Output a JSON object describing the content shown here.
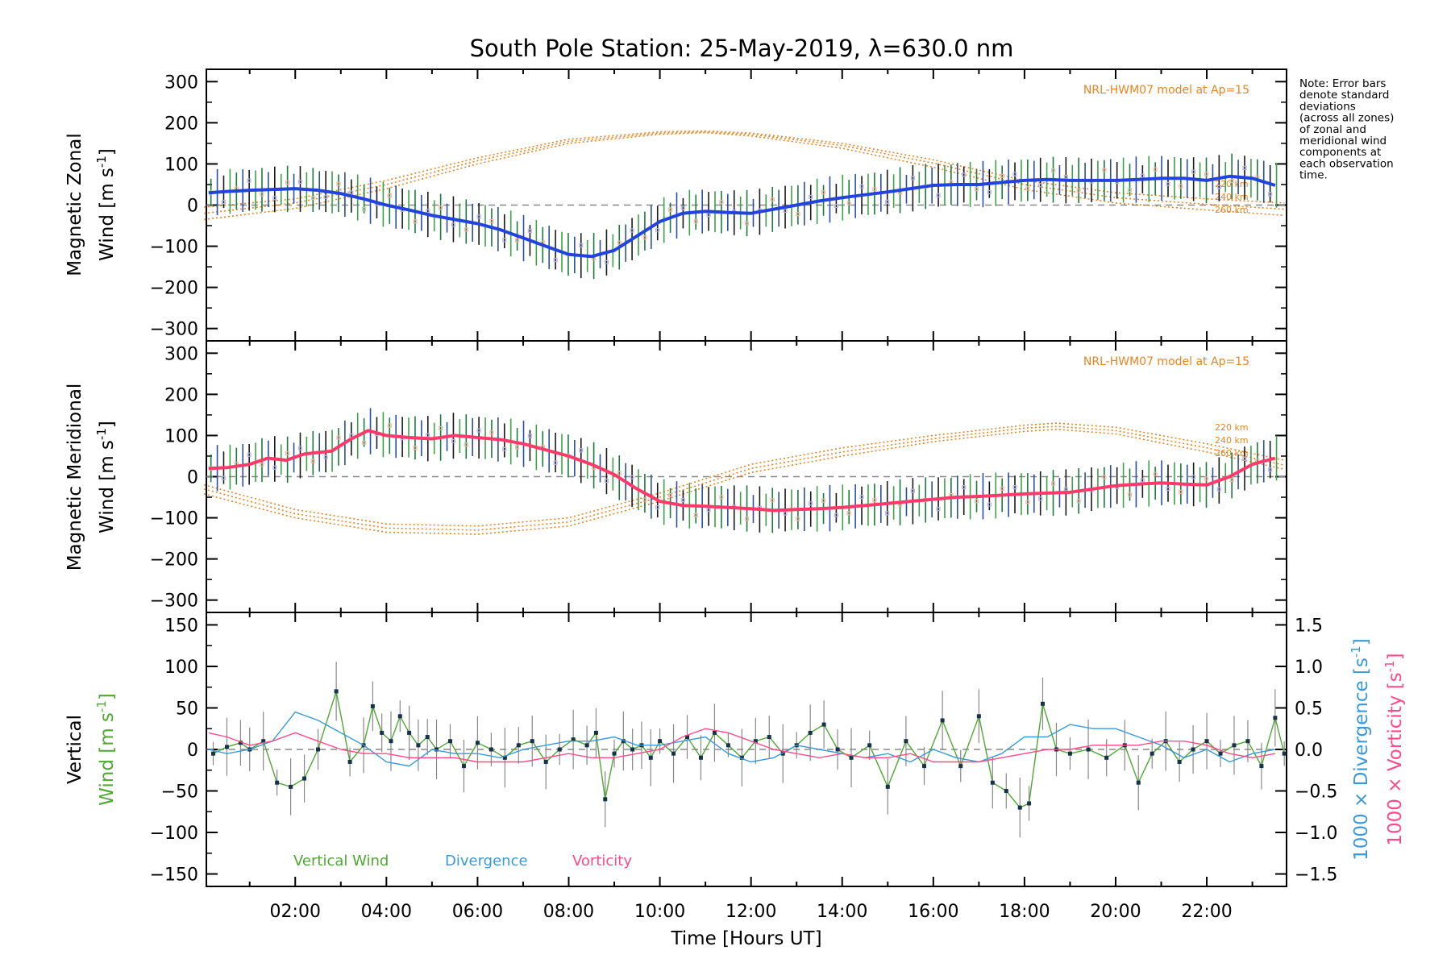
{
  "chart_data": [
    {
      "type": "line",
      "panel": "zonal",
      "title": "South Pole Station: 25-May-2019, λ=630.0 nm",
      "ylabel_line1": "Magnetic Zonal",
      "ylabel_line2": "Wind [m s",
      "ylabel_sup": "-1",
      "ylabel_close": "]",
      "ylim": [
        -330,
        330
      ],
      "yticks": [
        300,
        200,
        100,
        0,
        -100,
        -200,
        -300
      ],
      "xlim": [
        0.05,
        23.75
      ],
      "model_label": "NRL-HWM07 model at Ap=15",
      "altitudes": [
        "220 km",
        "240 km",
        "260 km"
      ],
      "note_lines": [
        "Note: Error bars",
        "denote standard",
        "deviations",
        "(across all zones)",
        "of zonal and",
        "meridional wind",
        "components at",
        "each observation",
        "time."
      ],
      "series": [
        {
          "name": "Zonal wind",
          "color": "#2244dd",
          "x": [
            0.1,
            0.5,
            1.0,
            1.5,
            2.0,
            2.5,
            3.0,
            3.5,
            4.0,
            4.5,
            5.0,
            5.5,
            6.0,
            6.5,
            7.0,
            7.5,
            8.0,
            8.5,
            9.0,
            9.5,
            10.0,
            10.5,
            11.0,
            11.5,
            12.0,
            12.5,
            13.0,
            13.5,
            14.0,
            14.5,
            15.0,
            15.5,
            16.0,
            16.5,
            17.0,
            17.5,
            18.0,
            18.5,
            19.0,
            19.5,
            20.0,
            20.5,
            21.0,
            21.5,
            22.0,
            22.5,
            23.0,
            23.5
          ],
          "values": [
            30,
            33,
            36,
            38,
            40,
            36,
            28,
            15,
            0,
            -12,
            -25,
            -35,
            -45,
            -60,
            -80,
            -100,
            -120,
            -125,
            -110,
            -75,
            -40,
            -20,
            -15,
            -18,
            -20,
            -10,
            0,
            10,
            18,
            25,
            32,
            40,
            48,
            50,
            50,
            55,
            60,
            62,
            60,
            60,
            60,
            62,
            65,
            65,
            60,
            70,
            65,
            48
          ],
          "spread": 45
        },
        {
          "name": "HWM07 220 km",
          "color": "#e8841f",
          "x": [
            0,
            2,
            4,
            6,
            8,
            10,
            11,
            12,
            14,
            16,
            18,
            20,
            22,
            23.7
          ],
          "values": [
            -5,
            15,
            60,
            115,
            160,
            178,
            180,
            175,
            150,
            110,
            60,
            30,
            15,
            5
          ]
        },
        {
          "name": "HWM07 240 km",
          "color": "#e8841f",
          "x": [
            0,
            2,
            4,
            6,
            8,
            10,
            11,
            12,
            14,
            16,
            18,
            20,
            22,
            23.7
          ],
          "values": [
            -20,
            5,
            50,
            108,
            155,
            175,
            178,
            172,
            145,
            102,
            50,
            18,
            2,
            -10
          ]
        },
        {
          "name": "HWM07 260 km",
          "color": "#e8841f",
          "x": [
            0,
            2,
            4,
            6,
            8,
            10,
            11,
            12,
            14,
            16,
            18,
            20,
            22,
            23.7
          ],
          "values": [
            -35,
            -8,
            40,
            100,
            150,
            172,
            176,
            168,
            138,
            92,
            38,
            5,
            -12,
            -25
          ]
        }
      ]
    },
    {
      "type": "line",
      "panel": "meridional",
      "ylabel_line1": "Magnetic Meridional",
      "ylabel_line2": "Wind [m s",
      "ylabel_sup": "-1",
      "ylabel_close": "]",
      "ylim": [
        -330,
        330
      ],
      "yticks": [
        300,
        200,
        100,
        0,
        -100,
        -200,
        -300
      ],
      "xlim": [
        0.05,
        23.75
      ],
      "model_label": "NRL-HWM07 model at Ap=15",
      "altitudes": [
        "220 km",
        "240 km",
        "260 km"
      ],
      "series": [
        {
          "name": "Meridional wind",
          "color": "#ff3a6a",
          "x": [
            0.1,
            0.5,
            1.0,
            1.4,
            1.8,
            2.2,
            2.8,
            3.2,
            3.6,
            4.0,
            4.5,
            5.0,
            5.5,
            6.0,
            6.5,
            7.0,
            7.5,
            8.0,
            8.5,
            9.0,
            9.5,
            10.0,
            10.5,
            11.0,
            11.5,
            12.0,
            12.5,
            13.0,
            13.5,
            14.0,
            14.5,
            15.0,
            15.5,
            16.0,
            16.5,
            17.0,
            17.5,
            18.0,
            18.5,
            19.0,
            19.5,
            20.0,
            20.5,
            21.0,
            21.5,
            22.0,
            22.5,
            23.0,
            23.5
          ],
          "values": [
            20,
            22,
            30,
            45,
            40,
            55,
            62,
            90,
            112,
            100,
            95,
            92,
            100,
            95,
            90,
            80,
            65,
            50,
            30,
            5,
            -30,
            -60,
            -70,
            -72,
            -75,
            -78,
            -82,
            -80,
            -78,
            -75,
            -70,
            -65,
            -60,
            -55,
            -50,
            -48,
            -45,
            -42,
            -40,
            -38,
            -30,
            -22,
            -18,
            -15,
            -18,
            -20,
            0,
            30,
            45
          ],
          "spread": 45
        },
        {
          "name": "HWM07 220 km",
          "color": "#e8841f",
          "x": [
            0,
            2,
            4,
            6,
            8,
            10,
            12,
            14,
            16,
            18,
            18.7,
            20,
            22,
            23.7
          ],
          "values": [
            -20,
            -80,
            -115,
            -120,
            -100,
            -40,
            30,
            70,
            100,
            125,
            130,
            120,
            80,
            40
          ]
        },
        {
          "name": "HWM07 240 km",
          "color": "#e8841f",
          "x": [
            0,
            2,
            4,
            6,
            8,
            10,
            12,
            14,
            16,
            18,
            18.7,
            20,
            22,
            23.7
          ],
          "values": [
            -30,
            -90,
            -125,
            -130,
            -110,
            -50,
            20,
            60,
            92,
            118,
            122,
            112,
            70,
            28
          ]
        },
        {
          "name": "HWM07 260 km",
          "color": "#e8841f",
          "x": [
            0,
            2,
            4,
            6,
            8,
            10,
            12,
            14,
            16,
            18,
            18.7,
            20,
            22,
            23.7
          ],
          "values": [
            -42,
            -100,
            -135,
            -140,
            -120,
            -60,
            10,
            50,
            85,
            110,
            115,
            104,
            60,
            18
          ]
        }
      ]
    },
    {
      "type": "line",
      "panel": "vertical",
      "ylabel_line1": "Vertical",
      "ylabel_line2": "Wind [m s",
      "ylabel_sup": "-1",
      "ylabel_close": "]",
      "ylim": [
        -165,
        165
      ],
      "yticks": [
        150,
        100,
        50,
        0,
        -50,
        -100,
        -150
      ],
      "y2lim": [
        -1.65,
        1.65
      ],
      "y2ticks": [
        "1.5",
        "1.0",
        "0.5",
        "0.0",
        "−0.5",
        "−1.0",
        "−1.5"
      ],
      "y2tick_values": [
        1.5,
        1.0,
        0.5,
        0.0,
        -0.5,
        -1.0,
        -1.5
      ],
      "y2label_div": "1000 × Divergence [s",
      "y2label_vort": "1000 × Vorticity [s",
      "y2label_sup": "-1",
      "y2label_close": "]",
      "xlim": [
        0.05,
        23.75
      ],
      "xticks": [
        "02:00",
        "04:00",
        "06:00",
        "08:00",
        "10:00",
        "12:00",
        "14:00",
        "16:00",
        "18:00",
        "20:00",
        "22:00"
      ],
      "xtick_values": [
        2,
        4,
        6,
        8,
        10,
        12,
        14,
        16,
        18,
        20,
        22
      ],
      "xlabel": "Time [Hours UT]",
      "legend": [
        "Vertical Wind",
        "Divergence",
        "Vorticity"
      ],
      "series": [
        {
          "name": "Vertical Wind",
          "color": "#4ea832",
          "x": [
            0.2,
            0.5,
            0.8,
            1.0,
            1.3,
            1.6,
            1.9,
            2.2,
            2.5,
            2.9,
            3.2,
            3.5,
            3.7,
            3.9,
            4.1,
            4.3,
            4.5,
            4.7,
            4.9,
            5.1,
            5.4,
            5.7,
            6.0,
            6.3,
            6.6,
            6.9,
            7.2,
            7.5,
            7.8,
            8.1,
            8.4,
            8.6,
            8.8,
            9.0,
            9.2,
            9.4,
            9.6,
            9.8,
            10.0,
            10.3,
            10.6,
            10.9,
            11.2,
            11.5,
            11.8,
            12.1,
            12.4,
            12.7,
            13.0,
            13.3,
            13.6,
            13.9,
            14.2,
            14.6,
            15.0,
            15.4,
            15.8,
            16.2,
            16.6,
            17.0,
            17.3,
            17.6,
            17.9,
            18.1,
            18.4,
            18.7,
            19.0,
            19.4,
            19.8,
            20.2,
            20.5,
            20.8,
            21.1,
            21.4,
            21.7,
            22.0,
            22.3,
            22.6,
            22.9,
            23.2,
            23.5,
            23.7
          ],
          "values": [
            -5,
            3,
            8,
            0,
            10,
            -40,
            -45,
            -35,
            0,
            70,
            -15,
            5,
            52,
            20,
            10,
            40,
            20,
            5,
            15,
            0,
            10,
            -20,
            8,
            0,
            -10,
            5,
            10,
            -15,
            0,
            12,
            5,
            20,
            -60,
            -5,
            10,
            0,
            5,
            -10,
            10,
            -5,
            15,
            -10,
            20,
            5,
            -10,
            10,
            15,
            -5,
            5,
            20,
            30,
            0,
            -10,
            5,
            -45,
            10,
            -20,
            35,
            -20,
            40,
            -40,
            -50,
            -70,
            -65,
            55,
            0,
            -5,
            0,
            -10,
            5,
            -40,
            -5,
            10,
            -15,
            0,
            10,
            -5,
            5,
            10,
            -20,
            38,
            -5
          ]
        },
        {
          "name": "Divergence",
          "color": "#3a9ad9",
          "axis": "right",
          "x": [
            0.1,
            0.5,
            1.0,
            1.5,
            2.0,
            2.5,
            3.0,
            3.5,
            4.0,
            4.5,
            5.0,
            5.5,
            6.0,
            6.5,
            7.0,
            7.5,
            8.0,
            8.5,
            9.0,
            9.5,
            10.0,
            10.5,
            11.0,
            11.5,
            12.0,
            12.5,
            13.0,
            13.5,
            14.0,
            14.5,
            15.0,
            15.5,
            16.0,
            16.5,
            17.0,
            17.5,
            18.0,
            18.5,
            19.0,
            19.5,
            20.0,
            20.5,
            21.0,
            21.5,
            22.0,
            22.5,
            23.0,
            23.5
          ],
          "values": [
            0.0,
            -0.05,
            0.0,
            0.1,
            0.45,
            0.35,
            0.2,
            0.05,
            -0.15,
            -0.2,
            0.0,
            -0.05,
            -0.05,
            -0.1,
            0.0,
            0.05,
            0.1,
            0.1,
            0.15,
            0.05,
            0.05,
            0.1,
            0.15,
            -0.05,
            -0.15,
            -0.1,
            0.05,
            0.0,
            -0.05,
            -0.1,
            -0.05,
            -0.15,
            0.0,
            -0.1,
            -0.15,
            -0.05,
            0.15,
            0.15,
            0.3,
            0.25,
            0.25,
            0.15,
            0.05,
            -0.1,
            0.0,
            -0.15,
            -0.05,
            0.0
          ]
        },
        {
          "name": "Vorticity",
          "color": "#ff4a86",
          "axis": "right",
          "x": [
            0.1,
            0.5,
            1.0,
            1.5,
            2.0,
            2.5,
            3.0,
            3.5,
            4.0,
            4.5,
            5.0,
            5.5,
            6.0,
            6.5,
            7.0,
            7.5,
            8.0,
            8.5,
            9.0,
            9.5,
            10.0,
            10.5,
            11.0,
            11.5,
            12.0,
            12.5,
            13.0,
            13.5,
            14.0,
            14.5,
            15.0,
            15.5,
            16.0,
            16.5,
            17.0,
            17.5,
            18.0,
            18.5,
            19.0,
            19.5,
            20.0,
            20.5,
            21.0,
            21.5,
            22.0,
            22.5,
            23.0,
            23.5
          ],
          "values": [
            0.2,
            0.15,
            0.05,
            0.1,
            0.2,
            0.1,
            0.0,
            -0.05,
            -0.05,
            -0.1,
            -0.1,
            -0.1,
            -0.15,
            -0.15,
            -0.15,
            -0.1,
            -0.05,
            -0.1,
            -0.1,
            -0.05,
            0.0,
            0.15,
            0.25,
            0.2,
            0.1,
            0.0,
            -0.05,
            -0.1,
            -0.05,
            -0.1,
            -0.1,
            -0.05,
            -0.15,
            -0.15,
            -0.15,
            -0.1,
            -0.05,
            0.0,
            0.0,
            0.05,
            0.05,
            0.05,
            0.1,
            0.1,
            0.05,
            -0.05,
            -0.1,
            -0.05
          ]
        }
      ]
    }
  ],
  "colors": {
    "zonal": "#2244dd",
    "meridional": "#ff3a6a",
    "vertical": "#4ea832",
    "divergence": "#3a9ad9",
    "vorticity": "#ff4a86",
    "model": "#e8841f"
  }
}
